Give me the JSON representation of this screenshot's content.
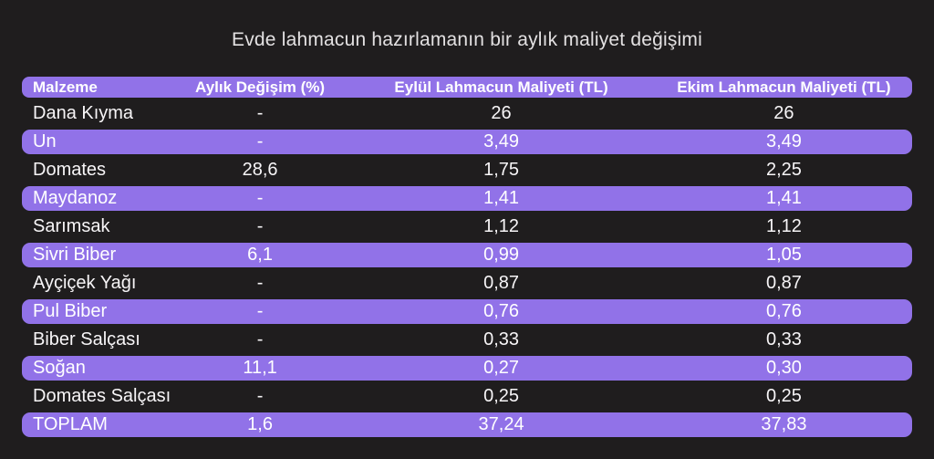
{
  "page": {
    "title": "Evde lahmacun hazırlamanın bir aylık maliyet değişimi"
  },
  "colors": {
    "background": "#1f1d1e",
    "accent_purple": "#9172e8",
    "row_text": "#f7f5f7",
    "title_text": "#e3e1e2",
    "header_text": "#ffffff"
  },
  "table": {
    "columns": [
      "Malzeme",
      "Aylık Değişim (%)",
      "Eylül Lahmacun Maliyeti (TL)",
      "Ekim Lahmacun Maliyeti (TL)"
    ],
    "rows": [
      {
        "malzeme": "Dana Kıyma",
        "degisim": "-",
        "eylul": "26",
        "ekim": "26",
        "highlight": false
      },
      {
        "malzeme": "Un",
        "degisim": "-",
        "eylul": "3,49",
        "ekim": "3,49",
        "highlight": true
      },
      {
        "malzeme": "Domates",
        "degisim": "28,6",
        "eylul": "1,75",
        "ekim": "2,25",
        "highlight": false
      },
      {
        "malzeme": "Maydanoz",
        "degisim": "-",
        "eylul": "1,41",
        "ekim": "1,41",
        "highlight": true
      },
      {
        "malzeme": "Sarımsak",
        "degisim": "-",
        "eylul": "1,12",
        "ekim": "1,12",
        "highlight": false
      },
      {
        "malzeme": "Sivri Biber",
        "degisim": "6,1",
        "eylul": "0,99",
        "ekim": "1,05",
        "highlight": true
      },
      {
        "malzeme": "Ayçiçek Yağı",
        "degisim": "-",
        "eylul": "0,87",
        "ekim": "0,87",
        "highlight": false
      },
      {
        "malzeme": "Pul Biber",
        "degisim": "-",
        "eylul": "0,76",
        "ekim": "0,76",
        "highlight": true
      },
      {
        "malzeme": "Biber Salçası",
        "degisim": "-",
        "eylul": "0,33",
        "ekim": "0,33",
        "highlight": false
      },
      {
        "malzeme": "Soğan",
        "degisim": "11,1",
        "eylul": "0,27",
        "ekim": "0,30",
        "highlight": true
      },
      {
        "malzeme": "Domates Salçası",
        "degisim": "-",
        "eylul": "0,25",
        "ekim": "0,25",
        "highlight": false
      },
      {
        "malzeme": "TOPLAM",
        "degisim": "1,6",
        "eylul": "37,24",
        "ekim": "37,83",
        "highlight": true
      }
    ]
  },
  "chart_data": {
    "type": "table",
    "title": "Evde lahmacun hazırlamanın bir aylık maliyet değişimi",
    "columns": [
      "Malzeme",
      "Aylık Değişim (%)",
      "Eylül Lahmacun Maliyeti (TL)",
      "Ekim Lahmacun Maliyeti (TL)"
    ],
    "categories": [
      "Dana Kıyma",
      "Un",
      "Domates",
      "Maydanoz",
      "Sarımsak",
      "Sivri Biber",
      "Ayçiçek Yağı",
      "Pul Biber",
      "Biber Salçası",
      "Soğan",
      "Domates Salçası",
      "TOPLAM"
    ],
    "series": [
      {
        "name": "Aylık Değişim (%)",
        "values": [
          null,
          null,
          28.6,
          null,
          null,
          6.1,
          null,
          null,
          null,
          11.1,
          null,
          1.6
        ]
      },
      {
        "name": "Eylül Lahmacun Maliyeti (TL)",
        "values": [
          26,
          3.49,
          1.75,
          1.41,
          1.12,
          0.99,
          0.87,
          0.76,
          0.33,
          0.27,
          0.25,
          37.24
        ]
      },
      {
        "name": "Ekim Lahmacun Maliyeti (TL)",
        "values": [
          26,
          3.49,
          2.25,
          1.41,
          1.12,
          1.05,
          0.87,
          0.76,
          0.33,
          0.3,
          0.25,
          37.83
        ]
      }
    ],
    "layout_hints": {
      "highlighted_rows_every_other": true,
      "highlight_color": "#9172e8",
      "background": "#1f1d1e"
    }
  }
}
